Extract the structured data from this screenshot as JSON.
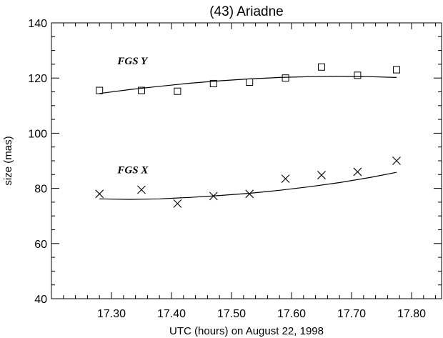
{
  "chart_data": {
    "type": "scatter",
    "title": "(43) Ariadne",
    "xlabel": "UTC (hours) on August 22, 1998",
    "ylabel": "size (mas)",
    "xlim": [
      17.2,
      17.85
    ],
    "ylim": [
      40,
      140
    ],
    "xticks": [
      "17.30",
      "17.40",
      "17.50",
      "17.60",
      "17.70",
      "17.80"
    ],
    "yticks": [
      "40",
      "60",
      "80",
      "100",
      "120",
      "140"
    ],
    "grid": false,
    "annotations": [
      {
        "text": "FGS Y",
        "x": 17.31,
        "y": 125
      },
      {
        "text": "FGS X",
        "x": 17.31,
        "y": 85.5
      }
    ],
    "series": [
      {
        "marker": "square",
        "x": [
          17.28,
          17.35,
          17.41,
          17.47,
          17.53,
          17.59,
          17.65,
          17.71,
          17.775
        ],
        "y": [
          115.5,
          115.5,
          115.2,
          118.0,
          118.5,
          120.0,
          124.0,
          121.0,
          123.0
        ],
        "fit": {
          "x": [
            17.28,
            17.33,
            17.38,
            17.43,
            17.48,
            17.53,
            17.58,
            17.63,
            17.68,
            17.73,
            17.775
          ],
          "y": [
            114.4,
            115.8,
            117.0,
            118.1,
            119.0,
            119.7,
            120.2,
            120.5,
            120.6,
            120.5,
            120.2
          ]
        }
      },
      {
        "marker": "cross",
        "x": [
          17.28,
          17.35,
          17.41,
          17.47,
          17.53,
          17.59,
          17.65,
          17.71,
          17.775
        ],
        "y": [
          78.0,
          79.5,
          74.5,
          77.2,
          78.0,
          83.5,
          84.8,
          86.0,
          90.0
        ],
        "fit": {
          "x": [
            17.28,
            17.33,
            17.38,
            17.43,
            17.48,
            17.53,
            17.58,
            17.63,
            17.68,
            17.73,
            17.775
          ],
          "y": [
            76.2,
            76.0,
            76.2,
            76.7,
            77.4,
            78.2,
            79.3,
            80.6,
            82.1,
            83.9,
            85.8
          ]
        }
      }
    ]
  }
}
